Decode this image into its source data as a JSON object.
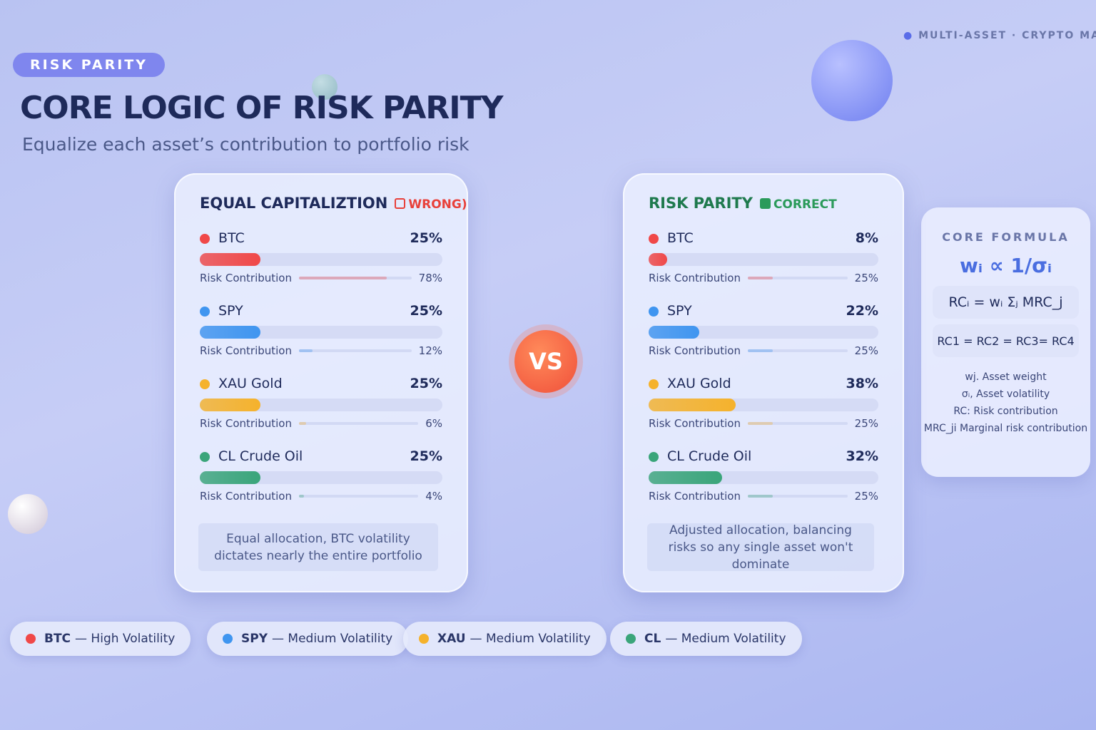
{
  "badge": "RISK PARITY",
  "top_tag": "MULTI-ASSET · CRYPTO MAR",
  "title": "CORE LOGIC OF RISK PARITY",
  "subtitle": "Equalize each asset’s contribution to portfolio risk",
  "panels": [
    {
      "title": "EQUAL CAPITALIZTION",
      "verdict": "WRONG)",
      "verdict_color": "#e8403a",
      "title_color": "#1e2a5a",
      "rows": [
        {
          "name": "BTC",
          "color": "#f04848",
          "weight": 25,
          "weight_label": "25%",
          "rc_label": "Risk Contribution",
          "rc": 78,
          "rc_value_label": "78%"
        },
        {
          "name": "SPY",
          "color": "#3f95f0",
          "weight": 25,
          "weight_label": "25%",
          "rc_label": "Risk Contribution",
          "rc": 12,
          "rc_value_label": "12%"
        },
        {
          "name": "XAU Gold",
          "color": "#f5b22c",
          "weight": 25,
          "weight_label": "25%",
          "rc_label": "Risk Contribution",
          "rc": 6,
          "rc_value_label": "6%"
        },
        {
          "name": "CL Crude Oil",
          "color": "#3aa57a",
          "weight": 25,
          "weight_label": "25%",
          "rc_label": "Risk Contribution",
          "rc": 4,
          "rc_value_label": "4%"
        }
      ],
      "note": "Equal allocation, BTC volatility dictates nearly the entire portfolio"
    },
    {
      "title": "RISK PARITY",
      "verdict": "CORRECT",
      "verdict_color": "#2a9a5a",
      "title_color": "#1f7a4e",
      "rows": [
        {
          "name": "BTC",
          "color": "#f04848",
          "weight": 8,
          "weight_label": "8%",
          "rc_label": "Risk Contribution",
          "rc": 25,
          "rc_value_label": "25%"
        },
        {
          "name": "SPY",
          "color": "#3f95f0",
          "weight": 22,
          "weight_label": "22%",
          "rc_label": "Risk Contribution",
          "rc": 25,
          "rc_value_label": "25%"
        },
        {
          "name": "XAU Gold",
          "color": "#f5b22c",
          "weight": 38,
          "weight_label": "38%",
          "rc_label": "Risk Contribution",
          "rc": 25,
          "rc_value_label": "25%"
        },
        {
          "name": "CL Crude Oil",
          "color": "#3aa57a",
          "weight": 32,
          "weight_label": "32%",
          "rc_label": "Risk Contribution",
          "rc": 25,
          "rc_value_label": "25%"
        }
      ],
      "note": "Adjusted allocation, balancing risks so any single asset won't dominate"
    }
  ],
  "vs": "VS",
  "formula": {
    "title": "CORE FORMULA",
    "main": "wᵢ ∝ 1/σᵢ",
    "eq1": "RCᵢ = wᵢ Σⱼ MRC_j",
    "eq2": "RC1 = RC2 = RC3= RC4",
    "notes": [
      "wj. Asset weight",
      "σᵢ, Asset volatility",
      "RC: Risk contribution",
      "MRC_ji Marginal risk contribution"
    ]
  },
  "legend": [
    {
      "asset": "BTC",
      "desc": "— High Volatility",
      "color": "#f04848"
    },
    {
      "asset": "SPY",
      "desc": "— Medium Volatility",
      "color": "#3f95f0"
    },
    {
      "asset": "XAU",
      "desc": "— Medium Volatility",
      "color": "#f5b22c"
    },
    {
      "asset": "CL",
      "desc": "— Medium Volatility",
      "color": "#3aa57a"
    }
  ]
}
